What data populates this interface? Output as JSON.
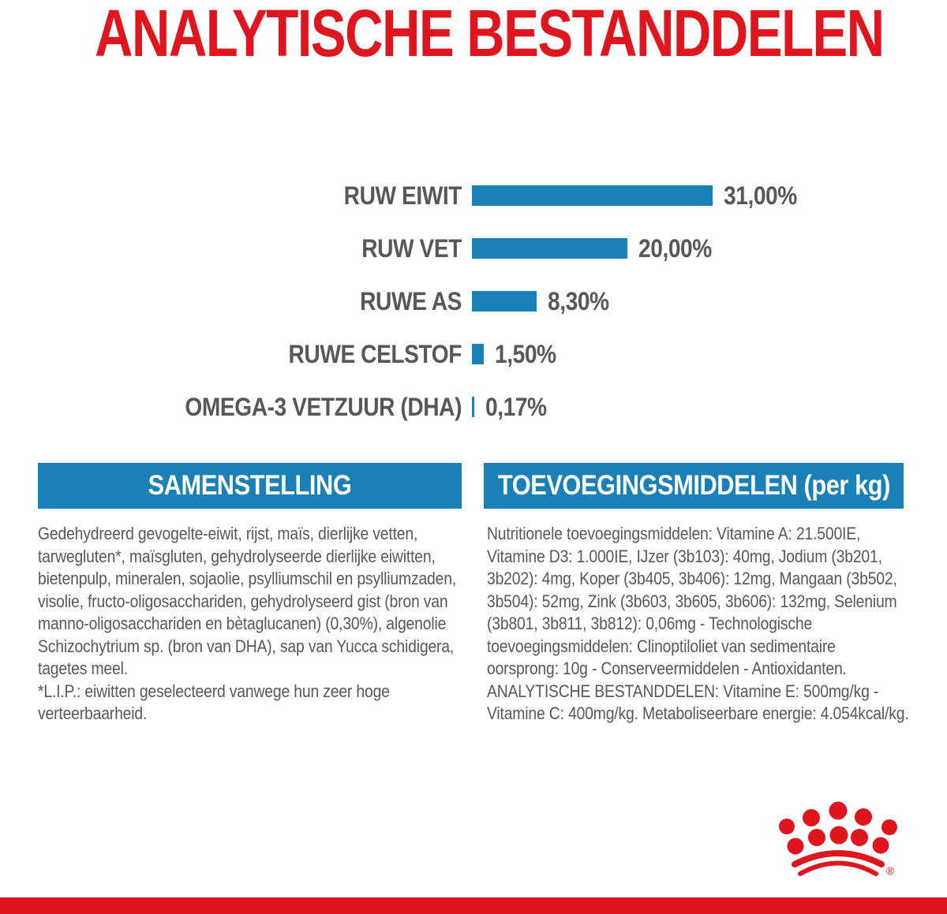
{
  "title": "ANALYTISCHE BESTANDDELEN",
  "chart_data": {
    "type": "bar",
    "orientation": "horizontal",
    "title": "ANALYTISCHE BESTANDDELEN",
    "categories": [
      "RUW EIWIT",
      "RUW VET",
      "RUWE AS",
      "RUWE CELSTOF",
      "OMEGA-3 VETZUUR (DHA)"
    ],
    "values": [
      31.0,
      20.0,
      8.3,
      1.5,
      0.17
    ],
    "value_labels": [
      "31,00%",
      "20,00%",
      "8,30%",
      "1,50%",
      "0,17%"
    ],
    "unit": "%",
    "xlim": [
      0,
      31
    ],
    "grid": false,
    "legend": false,
    "bar_color": "#1981b8",
    "label_color": "#57585a"
  },
  "sections": {
    "composition": {
      "header": "SAMENSTELLING",
      "ingredients": "Gedehydreerd gevogelte-eiwit, rijst, maïs, dierlijke vetten, tarwegluten*, maïsgluten, gehydrolyseerde dierlijke eiwitten, bietenpulp, mineralen, sojaolie, psylliumschil en psylliumzaden, visolie, fructo-oligosacchariden, gehydrolyseerd gist (bron van manno-oligosacchariden en bètaglucanen) (0,30%), algenolie Schizochytrium sp. (bron van DHA), sap van Yucca schidigera, tagetes meel.",
      "note": "*L.I.P.: eiwitten geselecteerd vanwege hun zeer hoge verteerbaarheid."
    },
    "additives": {
      "header": "TOEVOEGINGSMIDDELEN (per kg)",
      "body": "Nutritionele toevoegingsmiddelen: Vitamine A: 21.500IE, Vitamine D3: 1.000IE, IJzer (3b103): 40mg, Jodium (3b201, 3b202): 4mg, Koper (3b405, 3b406): 12mg, Mangaan (3b502, 3b504): 52mg, Zink (3b603, 3b605, 3b606): 132mg, Selenium (3b801, 3b811, 3b812): 0,06mg - Technologische toevoegingsmiddelen: Clinoptiloliet van sedimentaire oorsprong: 10g - Conserveermiddelen - Antioxidanten. ANALYTISCHE BESTANDDELEN: Vitamine E: 500mg/kg - Vitamine C: 400mg/kg. Metaboliseerbare energie: 4.054kcal/kg."
    }
  },
  "logo": {
    "name": "royal-canin-crown",
    "registered_mark": "®"
  },
  "colors": {
    "red": "#e0161f",
    "blue": "#1981b8",
    "text_gray": "#57585a"
  }
}
